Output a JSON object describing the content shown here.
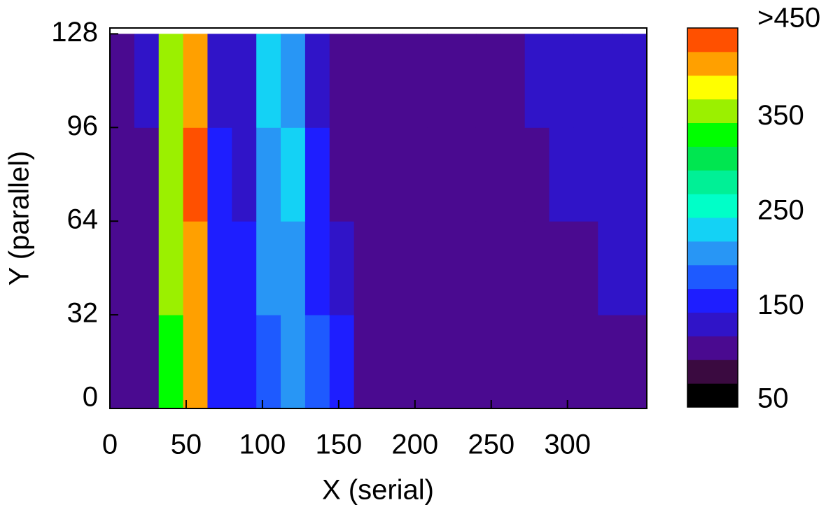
{
  "chart_data": {
    "type": "heatmap",
    "xlabel": "X (serial)",
    "ylabel": "Y (parallel)",
    "xlim": [
      0,
      352
    ],
    "ylim": [
      0,
      130
    ],
    "xticks": [
      0,
      50,
      100,
      150,
      200,
      250,
      300
    ],
    "yticks": [
      0,
      32,
      64,
      96,
      128
    ],
    "xbins": [
      0,
      16,
      32,
      48,
      64,
      80,
      96,
      112,
      128,
      144,
      160,
      176,
      192,
      208,
      224,
      240,
      256,
      272,
      288,
      304,
      320,
      336,
      352
    ],
    "ybins": [
      0,
      32,
      64,
      96,
      128
    ],
    "z": [
      [
        115,
        120,
        330,
        400,
        170,
        150,
        190,
        200,
        185,
        160,
        110,
        100,
        100,
        100,
        105,
        110,
        115,
        115,
        115,
        120,
        120,
        120
      ],
      [
        115,
        120,
        350,
        420,
        160,
        160,
        200,
        210,
        170,
        130,
        105,
        100,
        100,
        105,
        110,
        115,
        115,
        120,
        120,
        120,
        125,
        125
      ],
      [
        115,
        120,
        350,
        430,
        150,
        140,
        220,
        230,
        150,
        120,
        105,
        100,
        105,
        105,
        110,
        115,
        120,
        120,
        125,
        125,
        125,
        125
      ],
      [
        115,
        125,
        350,
        400,
        145,
        130,
        240,
        210,
        130,
        115,
        105,
        105,
        105,
        110,
        115,
        120,
        120,
        125,
        125,
        125,
        125,
        125
      ]
    ],
    "colorbar": {
      "ylim": [
        50,
        450
      ],
      "ticks": [
        50,
        150,
        250,
        350,
        {
          "value": 450,
          "label": ">450"
        }
      ],
      "colors": [
        "#000000",
        "#3a0a40",
        "#4a0a90",
        "#3014c8",
        "#1e1eff",
        "#1e5aff",
        "#2896f5",
        "#14d2f5",
        "#00ffc8",
        "#00f096",
        "#00e650",
        "#00ff00",
        "#9bf000",
        "#ffff00",
        "#ffa000",
        "#ff5000"
      ]
    }
  }
}
